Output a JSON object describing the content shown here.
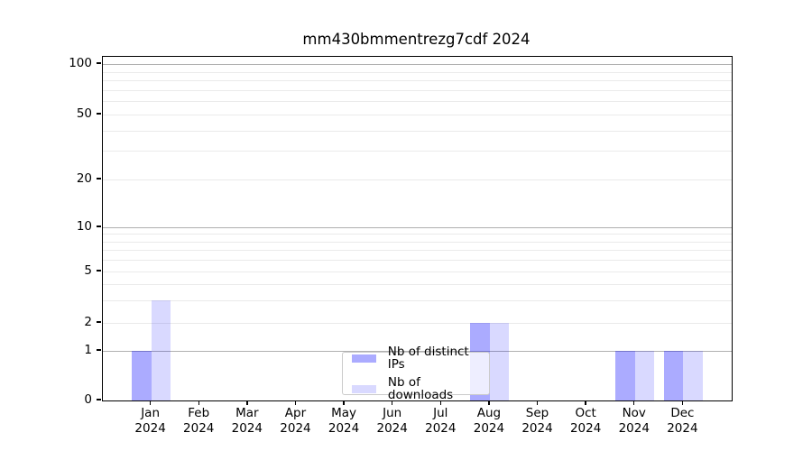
{
  "title": "mm430bmmentrezg7cdf 2024",
  "legend": {
    "items": [
      {
        "label": "Nb of distinct IPs",
        "color": "rgba(0,0,255,0.33)"
      },
      {
        "label": "Nb of downloads",
        "color": "rgba(0,0,255,0.15)"
      }
    ]
  },
  "chart_data": {
    "type": "bar",
    "title": "mm430bmmentrezg7cdf 2024",
    "categories": [
      {
        "month": "Jan",
        "year": "2024"
      },
      {
        "month": "Feb",
        "year": "2024"
      },
      {
        "month": "Mar",
        "year": "2024"
      },
      {
        "month": "Apr",
        "year": "2024"
      },
      {
        "month": "May",
        "year": "2024"
      },
      {
        "month": "Jun",
        "year": "2024"
      },
      {
        "month": "Jul",
        "year": "2024"
      },
      {
        "month": "Aug",
        "year": "2024"
      },
      {
        "month": "Sep",
        "year": "2024"
      },
      {
        "month": "Oct",
        "year": "2024"
      },
      {
        "month": "Nov",
        "year": "2024"
      },
      {
        "month": "Dec",
        "year": "2024"
      }
    ],
    "series": [
      {
        "name": "Nb of distinct IPs",
        "color": "rgba(0,0,255,0.33)",
        "color_on_white": "#aaaaff",
        "values": [
          1,
          0,
          0,
          0,
          0,
          0,
          0,
          2,
          0,
          0,
          1,
          1
        ]
      },
      {
        "name": "Nb of downloads",
        "color": "rgba(0,0,255,0.15)",
        "color_on_white": "#d9d9ff",
        "values": [
          3,
          0,
          0,
          0,
          0,
          0,
          0,
          2,
          0,
          0,
          1,
          1
        ]
      }
    ],
    "xlabel": "",
    "ylabel": "",
    "yticks": [
      100,
      50,
      20,
      10,
      5,
      2,
      1,
      0
    ],
    "yscale": "log-like",
    "ylim": [
      0,
      115
    ],
    "grid": "horizontal major and minor",
    "legend_position": "lower center",
    "grid_major_color": "#b0b0b0",
    "grid_minor_color": "#eaeaea"
  }
}
